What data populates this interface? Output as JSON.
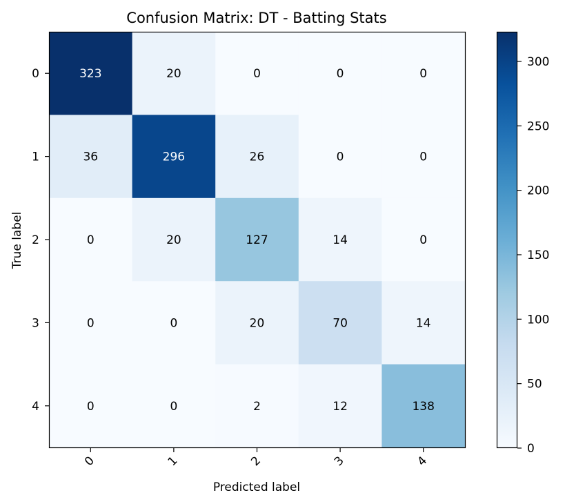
{
  "chart_data": {
    "type": "heatmap",
    "title": "Confusion Matrix: DT - Batting Stats",
    "xlabel": "Predicted label",
    "ylabel": "True label",
    "x_categories": [
      "0",
      "1",
      "2",
      "3",
      "4"
    ],
    "y_categories": [
      "0",
      "1",
      "2",
      "3",
      "4"
    ],
    "matrix": [
      [
        323,
        20,
        0,
        0,
        0
      ],
      [
        36,
        296,
        26,
        0,
        0
      ],
      [
        0,
        20,
        127,
        14,
        0
      ],
      [
        0,
        0,
        20,
        70,
        14
      ],
      [
        0,
        0,
        2,
        12,
        138
      ]
    ],
    "colormap": "Blues",
    "colorbar": {
      "min": 0,
      "max": 323,
      "ticks": [
        0,
        50,
        100,
        150,
        200,
        250,
        300
      ]
    },
    "text_threshold": 161.5,
    "text_colors": {
      "dark": "#000000",
      "light": "#ffffff"
    },
    "x_tick_rotation_deg": 45
  }
}
